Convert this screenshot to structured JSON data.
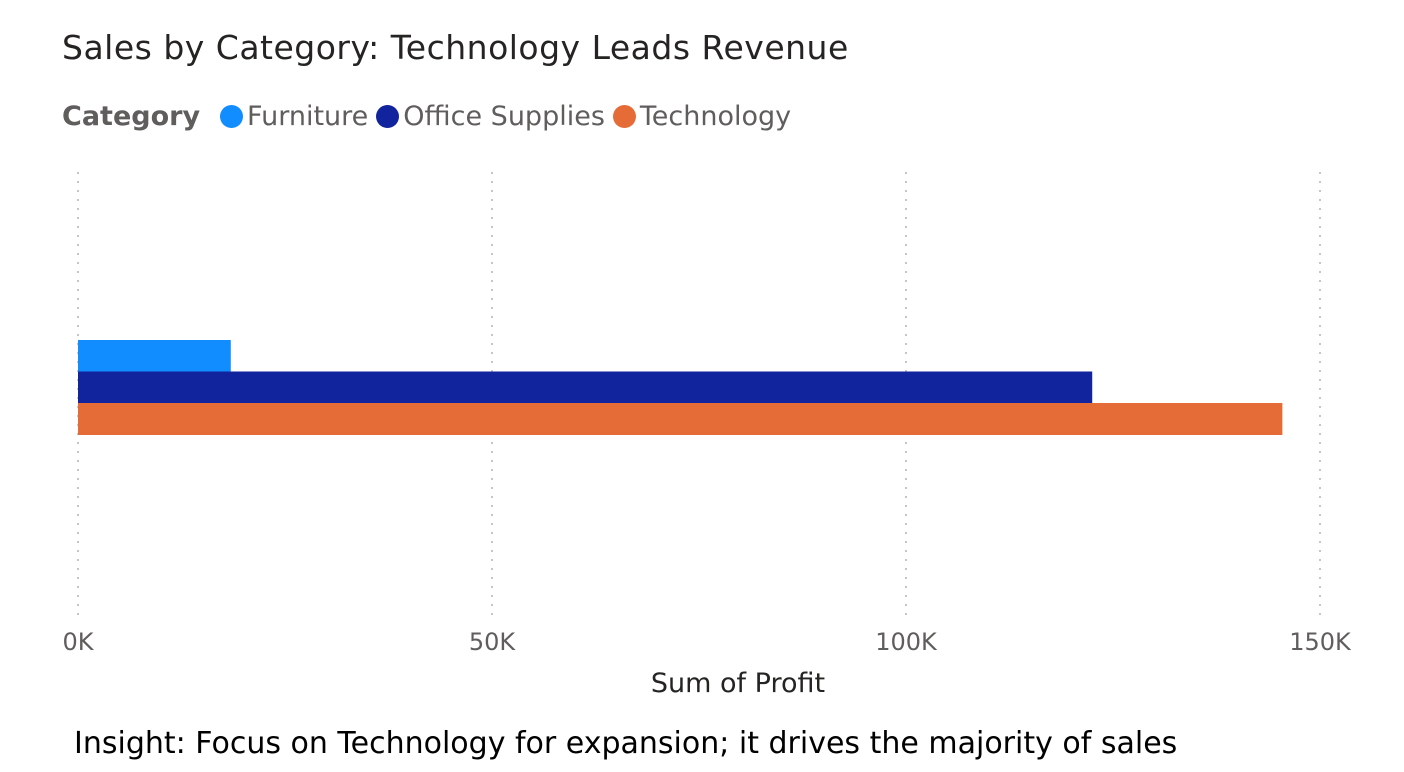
{
  "chart_data": {
    "type": "bar",
    "orientation": "horizontal",
    "title": "Sales by Category: Technology Leads Revenue",
    "legend_title": "Category",
    "legend_position": "top-left",
    "categories": [
      ""
    ],
    "series": [
      {
        "name": "Furniture",
        "color": "#118dff",
        "values": [
          18451
        ]
      },
      {
        "name": "Office Supplies",
        "color": "#12239e",
        "values": [
          122491
        ]
      },
      {
        "name": "Technology",
        "color": "#e66c37",
        "values": [
          145455
        ]
      }
    ],
    "xlabel": "Sum of Profit",
    "ylabel": "",
    "xlim": [
      0,
      150000
    ],
    "xticks": [
      {
        "value": 0,
        "label": "0K"
      },
      {
        "value": 50000,
        "label": "50K"
      },
      {
        "value": 100000,
        "label": "100K"
      },
      {
        "value": 150000,
        "label": "150K"
      }
    ],
    "grid": "vertical-dotted"
  },
  "insight": "Insight: Focus on Technology for expansion; it drives the majority of sales"
}
